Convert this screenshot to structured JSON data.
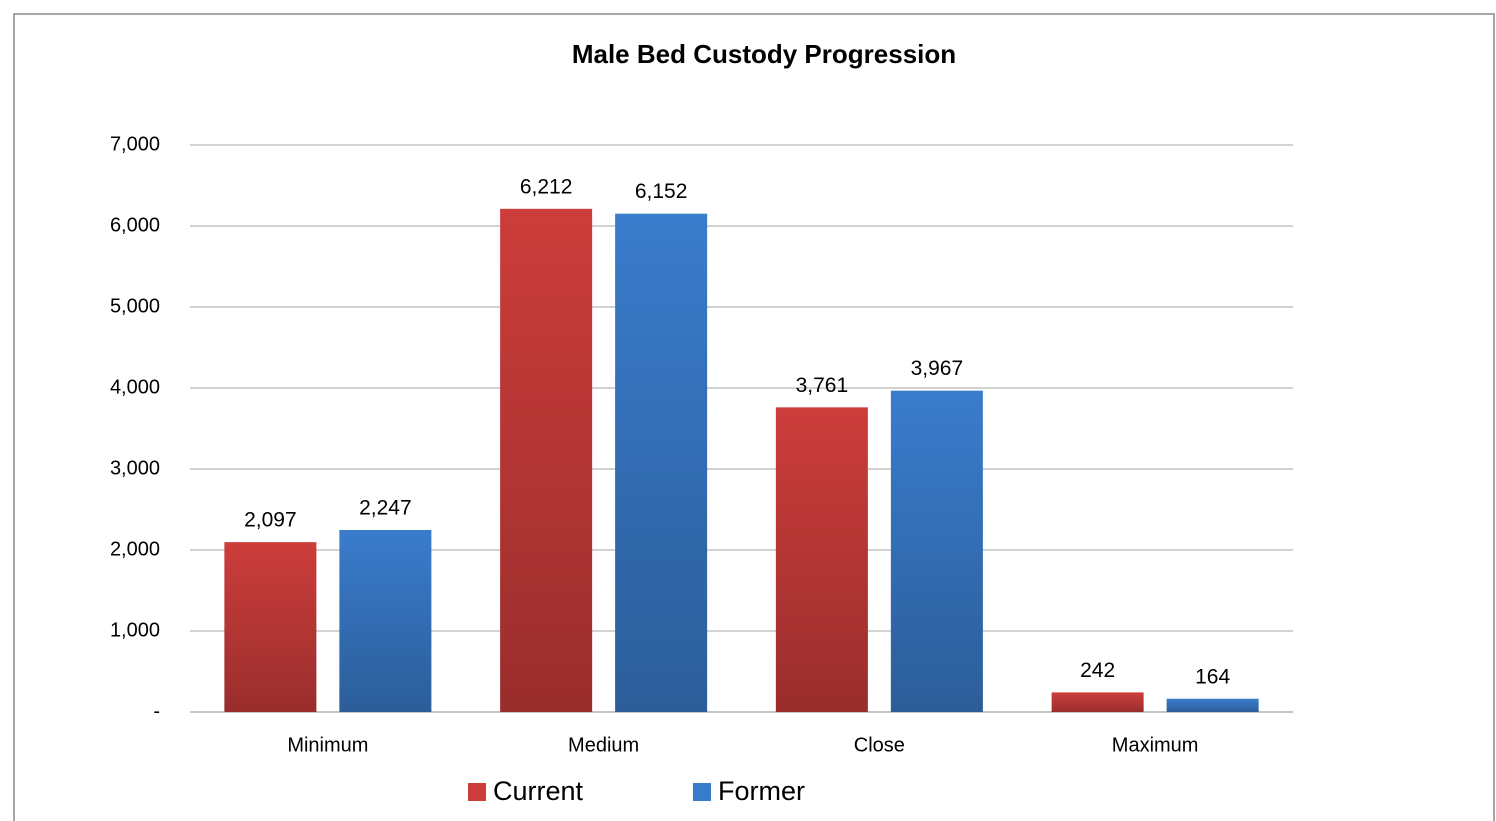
{
  "chart_data": {
    "type": "bar",
    "title": "Male Bed Custody Progression",
    "categories": [
      "Minimum",
      "Medium",
      "Close",
      "Maximum"
    ],
    "series": [
      {
        "name": "Current",
        "color": "#cc3d3b",
        "values": [
          2097,
          6212,
          3761,
          242
        ],
        "value_labels": [
          "2,097",
          "6,212",
          "3,761",
          "242"
        ]
      },
      {
        "name": "Former",
        "color": "#3a7ccc",
        "values": [
          2247,
          6152,
          3967,
          164
        ],
        "value_labels": [
          "2,247",
          "6,152",
          "3,967",
          "164"
        ]
      }
    ],
    "ylim": [
      0,
      7000
    ],
    "yticks": [
      {
        "value": 0,
        "label": "-"
      },
      {
        "value": 1000,
        "label": "1,000"
      },
      {
        "value": 2000,
        "label": "2,000"
      },
      {
        "value": 3000,
        "label": "3,000"
      },
      {
        "value": 4000,
        "label": "4,000"
      },
      {
        "value": 5000,
        "label": "5,000"
      },
      {
        "value": 6000,
        "label": "6,000"
      },
      {
        "value": 7000,
        "label": "7,000"
      }
    ],
    "grid": true,
    "legend": "bottom"
  }
}
